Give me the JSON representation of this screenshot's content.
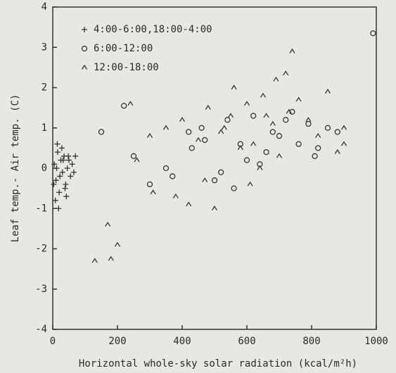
{
  "chart_data": {
    "type": "scatter",
    "xlabel": "Horizontal whole-sky solar radiation (kcal/m²h)",
    "ylabel": "Leaf temp.- Air temp. (C)",
    "xlim": [
      0,
      1000
    ],
    "xticks": [
      0,
      200,
      400,
      600,
      800,
      1000
    ],
    "ylim": [
      -4,
      4
    ],
    "yticks": [
      -4,
      -3,
      -2,
      -1,
      0,
      1,
      2,
      3,
      4
    ],
    "legend": "upper left",
    "series": [
      {
        "name": "4:00-6:00,18:00-4:00",
        "marker": "plus",
        "color": "#333333",
        "x": [
          5,
          10,
          15,
          20,
          25,
          30,
          35,
          40,
          45,
          50,
          55,
          60,
          8,
          18,
          28,
          38,
          48,
          12,
          22,
          32,
          42,
          65,
          70,
          3,
          14
        ],
        "values": [
          0.1,
          -0.3,
          0.4,
          -0.6,
          0.2,
          -0.1,
          0.3,
          -0.4,
          0.0,
          0.2,
          -0.2,
          0.1,
          -0.8,
          -1.0,
          0.5,
          -0.5,
          0.3,
          0.0,
          -0.2,
          0.2,
          -0.7,
          -0.1,
          0.3,
          -0.4,
          0.6
        ]
      },
      {
        "name": "6:00-12:00",
        "marker": "circle",
        "color": "#333333",
        "x": [
          990,
          220,
          300,
          370,
          420,
          460,
          500,
          540,
          580,
          620,
          660,
          700,
          740,
          790,
          820,
          850,
          150,
          250,
          430,
          520,
          600,
          680,
          760,
          810,
          880,
          560,
          640,
          350,
          470,
          720
        ],
        "values": [
          3.35,
          1.55,
          -0.4,
          -0.2,
          0.9,
          1.0,
          -0.3,
          1.2,
          0.6,
          1.3,
          0.4,
          0.8,
          1.4,
          1.1,
          0.5,
          1.0,
          0.9,
          0.3,
          0.5,
          -0.1,
          0.2,
          0.9,
          0.6,
          0.3,
          0.9,
          -0.5,
          0.1,
          0.0,
          0.7,
          1.2
        ]
      },
      {
        "name": "12:00-18:00",
        "marker": "caret",
        "color": "#333333",
        "x": [
          740,
          720,
          130,
          180,
          200,
          240,
          300,
          350,
          400,
          450,
          480,
          500,
          520,
          550,
          580,
          600,
          620,
          650,
          680,
          700,
          730,
          760,
          790,
          820,
          850,
          880,
          900,
          380,
          420,
          170,
          260,
          560,
          610,
          660,
          310,
          900,
          640,
          470,
          530,
          690
        ],
        "values": [
          2.9,
          2.35,
          -2.3,
          -2.25,
          -1.9,
          1.6,
          0.8,
          1.0,
          1.2,
          0.7,
          1.5,
          -1.0,
          0.9,
          1.3,
          0.5,
          1.6,
          0.6,
          1.8,
          1.1,
          0.3,
          1.4,
          1.7,
          1.2,
          0.8,
          1.9,
          0.4,
          1.0,
          -0.7,
          -0.9,
          -1.4,
          0.2,
          2.0,
          -0.4,
          1.3,
          -0.6,
          0.6,
          0.0,
          -0.3,
          1.0,
          2.2
        ]
      }
    ]
  }
}
